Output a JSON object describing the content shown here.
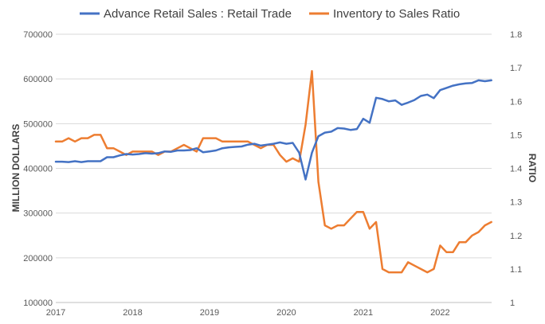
{
  "chart_data": {
    "type": "line",
    "title": "",
    "xlabel": "",
    "ylabel": "MILLION DOLLARS",
    "y2label": "RATIO",
    "ylim": [
      100000,
      700000
    ],
    "y2lim": [
      1,
      1.8
    ],
    "xlim": [
      2017,
      2022.67
    ],
    "x_ticks": [
      "2017",
      "2018",
      "2019",
      "2020",
      "2021",
      "2022"
    ],
    "y_ticks": [
      "100000",
      "200000",
      "300000",
      "400000",
      "500000",
      "600000",
      "700000"
    ],
    "y2_ticks": [
      "1",
      "1.1",
      "1.2",
      "1.3",
      "1.4",
      "1.5",
      "1.6",
      "1.7",
      "1.8"
    ],
    "gridlines": true,
    "legend_position": "top",
    "colors": {
      "retail": "#4472C4",
      "ratio": "#ED7D31"
    },
    "x": [
      2017.0,
      2017.083,
      2017.167,
      2017.25,
      2017.333,
      2017.417,
      2017.5,
      2017.583,
      2017.667,
      2017.75,
      2017.833,
      2017.917,
      2018.0,
      2018.083,
      2018.167,
      2018.25,
      2018.333,
      2018.417,
      2018.5,
      2018.583,
      2018.667,
      2018.75,
      2018.833,
      2018.917,
      2019.0,
      2019.083,
      2019.167,
      2019.25,
      2019.333,
      2019.417,
      2019.5,
      2019.583,
      2019.667,
      2019.75,
      2019.833,
      2019.917,
      2020.0,
      2020.083,
      2020.167,
      2020.25,
      2020.333,
      2020.417,
      2020.5,
      2020.583,
      2020.667,
      2020.75,
      2020.833,
      2020.917,
      2021.0,
      2021.083,
      2021.167,
      2021.25,
      2021.333,
      2021.417,
      2021.5,
      2021.583,
      2021.667,
      2021.75,
      2021.833,
      2021.917,
      2022.0,
      2022.083,
      2022.167,
      2022.25,
      2022.333,
      2022.417,
      2022.5,
      2022.583,
      2022.667
    ],
    "series": [
      {
        "name": "Advance Retail Sales : Retail Trade",
        "axis": "left",
        "values": [
          415000,
          415000,
          414000,
          416000,
          414000,
          416000,
          416000,
          416000,
          425000,
          425000,
          429000,
          432000,
          431000,
          432000,
          434000,
          433000,
          434000,
          438000,
          437000,
          440000,
          440000,
          441000,
          445000,
          436000,
          438000,
          440000,
          445000,
          447000,
          448000,
          449000,
          453000,
          455000,
          451000,
          453000,
          455000,
          458000,
          455000,
          457000,
          435000,
          375000,
          435000,
          472000,
          480000,
          482000,
          490000,
          489000,
          486000,
          488000,
          511000,
          502000,
          558000,
          555000,
          550000,
          552000,
          542000,
          547000,
          553000,
          562000,
          565000,
          557000,
          575000,
          580000,
          585000,
          588000,
          590000,
          591000,
          597000,
          595000,
          597000
        ]
      },
      {
        "name": "Inventory to Sales Ratio",
        "axis": "right",
        "values": [
          1.48,
          1.48,
          1.49,
          1.48,
          1.49,
          1.49,
          1.5,
          1.5,
          1.46,
          1.46,
          1.45,
          1.44,
          1.45,
          1.45,
          1.45,
          1.45,
          1.44,
          1.45,
          1.45,
          1.46,
          1.47,
          1.46,
          1.45,
          1.49,
          1.49,
          1.49,
          1.48,
          1.48,
          1.48,
          1.48,
          1.48,
          1.47,
          1.46,
          1.47,
          1.47,
          1.44,
          1.42,
          1.43,
          1.42,
          1.53,
          1.69,
          1.36,
          1.23,
          1.22,
          1.23,
          1.23,
          1.25,
          1.27,
          1.27,
          1.22,
          1.24,
          1.1,
          1.09,
          1.09,
          1.09,
          1.12,
          1.11,
          1.1,
          1.09,
          1.1,
          1.17,
          1.15,
          1.15,
          1.18,
          1.18,
          1.2,
          1.21,
          1.23,
          1.24
        ]
      }
    ]
  }
}
